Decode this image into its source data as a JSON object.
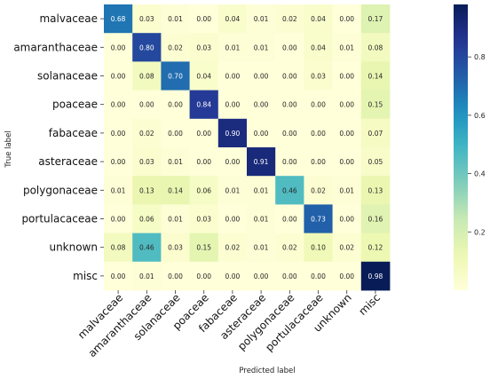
{
  "chart_data": {
    "type": "heatmap",
    "title": "",
    "xlabel": "Predicted label",
    "ylabel": "True label",
    "row_labels": [
      "malvaceae",
      "amaranthaceae",
      "solanaceae",
      "poaceae",
      "fabaceae",
      "asteraceae",
      "polygonaceae",
      "portulacaceae",
      "unknown",
      "misc"
    ],
    "col_labels": [
      "malvaceae",
      "amaranthaceae",
      "solanaceae",
      "poaceae",
      "fabaceae",
      "asteraceae",
      "polygonaceae",
      "portulacaceae",
      "unknown",
      "misc"
    ],
    "values": [
      [
        0.68,
        0.03,
        0.01,
        0.0,
        0.04,
        0.01,
        0.02,
        0.04,
        0.0,
        0.17
      ],
      [
        0.0,
        0.8,
        0.02,
        0.03,
        0.01,
        0.01,
        0.0,
        0.04,
        0.01,
        0.08
      ],
      [
        0.0,
        0.08,
        0.7,
        0.04,
        0.0,
        0.0,
        0.0,
        0.03,
        0.0,
        0.14
      ],
      [
        0.0,
        0.0,
        0.0,
        0.84,
        0.0,
        0.0,
        0.0,
        0.0,
        0.0,
        0.15
      ],
      [
        0.0,
        0.02,
        0.0,
        0.0,
        0.9,
        0.0,
        0.0,
        0.0,
        0.0,
        0.07
      ],
      [
        0.0,
        0.03,
        0.01,
        0.0,
        0.0,
        0.91,
        0.0,
        0.0,
        0.0,
        0.05
      ],
      [
        0.01,
        0.13,
        0.14,
        0.06,
        0.01,
        0.01,
        0.46,
        0.02,
        0.01,
        0.13
      ],
      [
        0.0,
        0.06,
        0.01,
        0.03,
        0.0,
        0.01,
        0.0,
        0.73,
        0.0,
        0.16
      ],
      [
        0.08,
        0.46,
        0.03,
        0.15,
        0.02,
        0.01,
        0.02,
        0.1,
        0.02,
        0.12
      ],
      [
        0.0,
        0.01,
        0.0,
        0.0,
        0.0,
        0.0,
        0.0,
        0.0,
        0.0,
        0.98
      ]
    ],
    "value_format": "0.00",
    "colormap": "YlGnBu",
    "color_range": [
      0,
      0.98
    ],
    "colorbar_ticks": [
      0.2,
      0.4,
      0.6,
      0.8
    ]
  }
}
